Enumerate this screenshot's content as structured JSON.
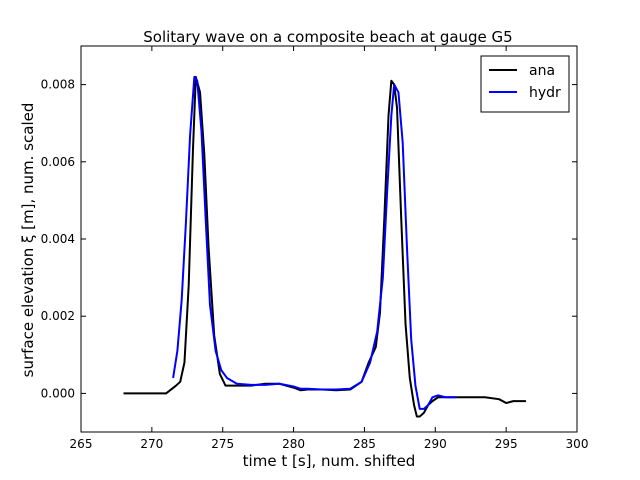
{
  "chart_data": {
    "type": "line",
    "title": "Solitary wave on a composite beach at gauge G5",
    "xlabel": "time  t [s], num. shifted",
    "ylabel": "surface elevation ξ [m], num. scaled",
    "xlim": [
      265,
      300
    ],
    "ylim": [
      -0.001,
      0.009
    ],
    "xticks": [
      265,
      270,
      275,
      280,
      285,
      290,
      295,
      300
    ],
    "xtick_labels": [
      "265",
      "270",
      "275",
      "280",
      "285",
      "290",
      "295",
      "300"
    ],
    "yticks": [
      0.0,
      0.002,
      0.004,
      0.006,
      0.008
    ],
    "ytick_labels": [
      "0.000",
      "0.002",
      "0.004",
      "0.006",
      "0.008"
    ],
    "grid": false,
    "legend_position": "top-right",
    "series": [
      {
        "name": "ana",
        "color": "#000000",
        "x": [
          268.0,
          269.0,
          270.0,
          271.0,
          271.7,
          272.0,
          272.3,
          272.6,
          272.9,
          273.1,
          273.4,
          273.7,
          274.0,
          274.4,
          274.8,
          275.2,
          276.0,
          277.0,
          278.0,
          279.0,
          280.0,
          280.5,
          281.0,
          282.0,
          283.0,
          284.0,
          284.8,
          285.3,
          285.8,
          286.1,
          286.4,
          286.7,
          286.9,
          287.1,
          287.3,
          287.6,
          287.9,
          288.2,
          288.5,
          288.7,
          288.9,
          289.2,
          289.5,
          289.8,
          290.2,
          290.6,
          291.0,
          291.5,
          292.5,
          293.5,
          294.5,
          295.0,
          295.5,
          296.4
        ],
        "y": [
          0.0,
          0.0,
          0.0,
          0.0,
          0.0002,
          0.0003,
          0.0008,
          0.0028,
          0.0063,
          0.0082,
          0.0078,
          0.0062,
          0.0038,
          0.0015,
          0.0005,
          0.0002,
          0.0002,
          0.0002,
          0.00025,
          0.00025,
          0.00015,
          8e-05,
          0.0001,
          0.0001,
          8e-05,
          0.0001,
          0.0003,
          0.0008,
          0.0012,
          0.0021,
          0.0045,
          0.0072,
          0.0081,
          0.008,
          0.0074,
          0.0045,
          0.0018,
          0.0004,
          -0.0003,
          -0.0006,
          -0.0006,
          -0.0005,
          -0.0003,
          -0.0002,
          -0.0001,
          -0.0001,
          -0.0001,
          -0.0001,
          -0.0001,
          -0.0001,
          -0.00015,
          -0.00025,
          -0.0002,
          -0.0002
        ]
      },
      {
        "name": "hydr",
        "color": "#0000ff",
        "x": [
          271.5,
          271.8,
          272.1,
          272.4,
          272.7,
          273.0,
          273.2,
          273.5,
          273.8,
          274.1,
          274.5,
          274.9,
          275.3,
          276.0,
          277.0,
          278.0,
          279.0,
          280.0,
          280.5,
          281.0,
          282.0,
          283.0,
          284.0,
          284.8,
          285.4,
          285.9,
          286.3,
          286.6,
          286.9,
          287.1,
          287.4,
          287.7,
          288.0,
          288.3,
          288.6,
          288.9,
          289.2,
          289.5,
          289.8,
          290.2,
          290.7,
          291.5
        ],
        "y": [
          0.0004,
          0.0011,
          0.0024,
          0.0044,
          0.0067,
          0.0082,
          0.0081,
          0.0068,
          0.0045,
          0.0023,
          0.0011,
          0.0006,
          0.0004,
          0.00025,
          0.00022,
          0.00022,
          0.00025,
          0.00018,
          0.00012,
          0.00012,
          0.0001,
          0.0001,
          0.00012,
          0.0003,
          0.0008,
          0.0016,
          0.003,
          0.0052,
          0.0072,
          0.008,
          0.0078,
          0.0065,
          0.0038,
          0.0014,
          0.0002,
          -0.0004,
          -0.0004,
          -0.0003,
          -0.0001,
          -5e-05,
          -0.0001,
          -0.0001
        ]
      }
    ]
  }
}
